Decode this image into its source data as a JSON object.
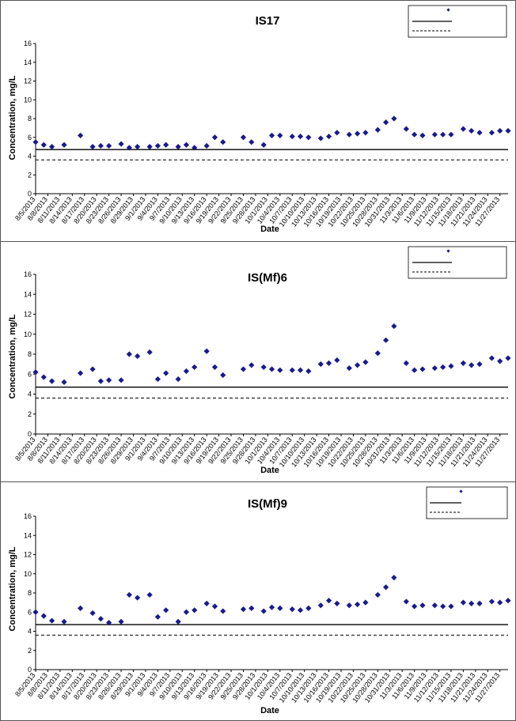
{
  "chart_data": [
    {
      "type": "scatter",
      "title": "IS17",
      "xlabel": "Date",
      "ylabel": "Concentration, mg/L",
      "ylim": [
        0,
        16
      ],
      "yticks": [
        "0",
        "2",
        "4",
        "6",
        "8",
        "10",
        "12",
        "14",
        "16"
      ],
      "xlim": [
        "8/5/2013",
        "11/29/2013"
      ],
      "xtick_labels": [
        "8/5/2013",
        "8/8/2013",
        "8/11/2013",
        "8/14/2013",
        "8/17/2013",
        "8/20/2013",
        "8/23/2013",
        "8/26/2013",
        "8/29/2013",
        "9/1/2013",
        "9/4/2013",
        "9/7/2013",
        "9/10/2013",
        "9/13/2013",
        "9/16/2013",
        "9/19/2013",
        "9/22/2013",
        "9/25/2013",
        "9/28/2013",
        "10/1/2013",
        "10/4/2013",
        "10/7/2013",
        "10/10/2013",
        "10/13/2013",
        "10/16/2013",
        "10/19/2013",
        "10/22/2013",
        "10/25/2013",
        "10/28/2013",
        "10/31/2013",
        "11/3/2013",
        "11/6/2013",
        "11/9/2013",
        "11/12/2013",
        "11/15/2013",
        "11/18/2013",
        "11/21/2013",
        "11/24/2013",
        "11/27/2013"
      ],
      "grid": false,
      "legend_placement": "top-right",
      "marker_color": "#1a1a8c",
      "line_solid": 4.7,
      "line_dashed": 3.6,
      "points": [
        [
          "8/5/2013",
          5.5
        ],
        [
          "8/7/2013",
          5.2
        ],
        [
          "8/9/2013",
          5.0
        ],
        [
          "8/12/2013",
          5.2
        ],
        [
          "8/16/2013",
          6.2
        ],
        [
          "8/19/2013",
          5.0
        ],
        [
          "8/21/2013",
          5.1
        ],
        [
          "8/23/2013",
          5.1
        ],
        [
          "8/26/2013",
          5.3
        ],
        [
          "8/28/2013",
          4.9
        ],
        [
          "8/30/2013",
          5.0
        ],
        [
          "9/2/2013",
          5.0
        ],
        [
          "9/4/2013",
          5.1
        ],
        [
          "9/6/2013",
          5.2
        ],
        [
          "9/9/2013",
          5.0
        ],
        [
          "9/11/2013",
          5.2
        ],
        [
          "9/13/2013",
          4.9
        ],
        [
          "9/16/2013",
          5.1
        ],
        [
          "9/18/2013",
          6.0
        ],
        [
          "9/20/2013",
          5.5
        ],
        [
          "9/25/2013",
          6.0
        ],
        [
          "9/27/2013",
          5.5
        ],
        [
          "9/30/2013",
          5.2
        ],
        [
          "10/2/2013",
          6.2
        ],
        [
          "10/4/2013",
          6.2
        ],
        [
          "10/7/2013",
          6.1
        ],
        [
          "10/9/2013",
          6.1
        ],
        [
          "10/11/2013",
          6.0
        ],
        [
          "10/14/2013",
          5.9
        ],
        [
          "10/16/2013",
          6.1
        ],
        [
          "10/18/2013",
          6.5
        ],
        [
          "10/21/2013",
          6.3
        ],
        [
          "10/23/2013",
          6.4
        ],
        [
          "10/25/2013",
          6.5
        ],
        [
          "10/28/2013",
          6.8
        ],
        [
          "10/30/2013",
          7.6
        ],
        [
          "11/1/2013",
          8.0
        ],
        [
          "11/4/2013",
          6.9
        ],
        [
          "11/6/2013",
          6.3
        ],
        [
          "11/8/2013",
          6.2
        ],
        [
          "11/11/2013",
          6.3
        ],
        [
          "11/13/2013",
          6.3
        ],
        [
          "11/15/2013",
          6.3
        ],
        [
          "11/18/2013",
          6.9
        ],
        [
          "11/20/2013",
          6.7
        ],
        [
          "11/22/2013",
          6.5
        ],
        [
          "11/25/2013",
          6.5
        ],
        [
          "11/27/2013",
          6.7
        ],
        [
          "11/29/2013",
          6.7
        ]
      ]
    },
    {
      "type": "scatter",
      "title": "IS(Mf)6",
      "xlabel": "Date",
      "ylabel": "Concentration, mg/L",
      "ylim": [
        0,
        16
      ],
      "yticks": [
        "0",
        "2",
        "4",
        "6",
        "8",
        "10",
        "12",
        "14",
        "16"
      ],
      "xlim": [
        "8/5/2013",
        "11/29/2013"
      ],
      "xtick_labels": [
        "8/5/2013",
        "8/8/2013",
        "8/11/2013",
        "8/14/2013",
        "8/17/2013",
        "8/20/2013",
        "8/23/2013",
        "8/26/2013",
        "8/29/2013",
        "9/1/2013",
        "9/4/2013",
        "9/7/2013",
        "9/10/2013",
        "9/13/2013",
        "9/16/2013",
        "9/19/2013",
        "9/22/2013",
        "9/25/2013",
        "9/28/2013",
        "10/1/2013",
        "10/4/2013",
        "10/7/2013",
        "10/10/2013",
        "10/13/2013",
        "10/16/2013",
        "10/19/2013",
        "10/22/2013",
        "10/25/2013",
        "10/28/2013",
        "10/31/2013",
        "11/3/2013",
        "11/6/2013",
        "11/9/2013",
        "11/12/2013",
        "11/15/2013",
        "11/18/2013",
        "11/21/2013",
        "11/24/2013",
        "11/27/2013"
      ],
      "grid": false,
      "legend_placement": "top-right",
      "marker_color": "#1a1a8c",
      "line_solid": 4.7,
      "line_dashed": 3.6,
      "points": [
        [
          "8/5/2013",
          6.2
        ],
        [
          "8/7/2013",
          5.7
        ],
        [
          "8/9/2013",
          5.3
        ],
        [
          "8/12/2013",
          5.2
        ],
        [
          "8/16/2013",
          6.1
        ],
        [
          "8/19/2013",
          6.5
        ],
        [
          "8/21/2013",
          5.3
        ],
        [
          "8/23/2013",
          5.4
        ],
        [
          "8/26/2013",
          5.4
        ],
        [
          "8/28/2013",
          8.0
        ],
        [
          "8/30/2013",
          7.8
        ],
        [
          "9/2/2013",
          8.2
        ],
        [
          "9/4/2013",
          5.5
        ],
        [
          "9/6/2013",
          6.1
        ],
        [
          "9/9/2013",
          5.5
        ],
        [
          "9/11/2013",
          6.3
        ],
        [
          "9/13/2013",
          6.7
        ],
        [
          "9/16/2013",
          8.3
        ],
        [
          "9/18/2013",
          6.7
        ],
        [
          "9/20/2013",
          5.9
        ],
        [
          "9/25/2013",
          6.5
        ],
        [
          "9/27/2013",
          6.9
        ],
        [
          "9/30/2013",
          6.7
        ],
        [
          "10/2/2013",
          6.5
        ],
        [
          "10/4/2013",
          6.4
        ],
        [
          "10/7/2013",
          6.4
        ],
        [
          "10/9/2013",
          6.4
        ],
        [
          "10/11/2013",
          6.3
        ],
        [
          "10/14/2013",
          7.0
        ],
        [
          "10/16/2013",
          7.1
        ],
        [
          "10/18/2013",
          7.4
        ],
        [
          "10/21/2013",
          6.6
        ],
        [
          "10/23/2013",
          6.9
        ],
        [
          "10/25/2013",
          7.2
        ],
        [
          "10/28/2013",
          8.1
        ],
        [
          "10/30/2013",
          9.4
        ],
        [
          "11/1/2013",
          10.8
        ],
        [
          "11/4/2013",
          7.1
        ],
        [
          "11/6/2013",
          6.4
        ],
        [
          "11/8/2013",
          6.5
        ],
        [
          "11/11/2013",
          6.6
        ],
        [
          "11/13/2013",
          6.7
        ],
        [
          "11/15/2013",
          6.8
        ],
        [
          "11/18/2013",
          7.1
        ],
        [
          "11/20/2013",
          6.9
        ],
        [
          "11/22/2013",
          7.0
        ],
        [
          "11/25/2013",
          7.6
        ],
        [
          "11/27/2013",
          7.3
        ],
        [
          "11/29/2013",
          7.6
        ]
      ]
    },
    {
      "type": "scatter",
      "title": "IS(Mf)9",
      "xlabel": "Date",
      "ylabel": "Concentration, mg/L",
      "ylim": [
        0,
        16
      ],
      "yticks": [
        "0",
        "2",
        "4",
        "6",
        "8",
        "10",
        "12",
        "14",
        "16"
      ],
      "xlim": [
        "8/5/2013",
        "11/29/2013"
      ],
      "xtick_labels": [
        "8/5/2013",
        "8/8/2013",
        "8/11/2013",
        "8/14/2013",
        "8/17/2013",
        "8/20/2013",
        "8/23/2013",
        "8/26/2013",
        "8/29/2013",
        "9/1/2013",
        "9/4/2013",
        "9/7/2013",
        "9/10/2013",
        "9/13/2013",
        "9/16/2013",
        "9/19/2013",
        "9/22/2013",
        "9/25/2013",
        "9/28/2013",
        "10/1/2013",
        "10/4/2013",
        "10/7/2013",
        "10/10/2013",
        "10/13/2013",
        "10/16/2013",
        "10/19/2013",
        "10/22/2013",
        "10/25/2013",
        "10/28/2013",
        "10/31/2013",
        "11/3/2013",
        "11/6/2013",
        "11/9/2013",
        "11/12/2013",
        "11/15/2013",
        "11/18/2013",
        "11/21/2013",
        "11/24/2013",
        "11/27/2013"
      ],
      "grid": false,
      "legend_placement": "top-right",
      "marker_color": "#1a1a8c",
      "line_solid": 4.7,
      "line_dashed": 3.6,
      "points": [
        [
          "8/5/2013",
          6.0
        ],
        [
          "8/7/2013",
          5.6
        ],
        [
          "8/9/2013",
          5.1
        ],
        [
          "8/12/2013",
          5.0
        ],
        [
          "8/16/2013",
          6.4
        ],
        [
          "8/19/2013",
          5.9
        ],
        [
          "8/21/2013",
          5.3
        ],
        [
          "8/23/2013",
          4.9
        ],
        [
          "8/26/2013",
          5.0
        ],
        [
          "8/28/2013",
          7.8
        ],
        [
          "8/30/2013",
          7.5
        ],
        [
          "9/2/2013",
          7.8
        ],
        [
          "9/4/2013",
          5.5
        ],
        [
          "9/6/2013",
          6.2
        ],
        [
          "9/9/2013",
          5.0
        ],
        [
          "9/11/2013",
          6.0
        ],
        [
          "9/13/2013",
          6.2
        ],
        [
          "9/16/2013",
          6.9
        ],
        [
          "9/18/2013",
          6.6
        ],
        [
          "9/20/2013",
          6.1
        ],
        [
          "9/25/2013",
          6.3
        ],
        [
          "9/27/2013",
          6.4
        ],
        [
          "9/30/2013",
          6.1
        ],
        [
          "10/2/2013",
          6.5
        ],
        [
          "10/4/2013",
          6.4
        ],
        [
          "10/7/2013",
          6.3
        ],
        [
          "10/9/2013",
          6.2
        ],
        [
          "10/11/2013",
          6.4
        ],
        [
          "10/14/2013",
          6.7
        ],
        [
          "10/16/2013",
          7.2
        ],
        [
          "10/18/2013",
          6.9
        ],
        [
          "10/21/2013",
          6.7
        ],
        [
          "10/23/2013",
          6.8
        ],
        [
          "10/25/2013",
          7.0
        ],
        [
          "10/28/2013",
          7.8
        ],
        [
          "10/30/2013",
          8.6
        ],
        [
          "11/1/2013",
          9.6
        ],
        [
          "11/4/2013",
          7.1
        ],
        [
          "11/6/2013",
          6.6
        ],
        [
          "11/8/2013",
          6.7
        ],
        [
          "11/11/2013",
          6.7
        ],
        [
          "11/13/2013",
          6.6
        ],
        [
          "11/15/2013",
          6.6
        ],
        [
          "11/18/2013",
          7.0
        ],
        [
          "11/20/2013",
          6.9
        ],
        [
          "11/22/2013",
          6.9
        ],
        [
          "11/25/2013",
          7.1
        ],
        [
          "11/27/2013",
          7.0
        ],
        [
          "11/29/2013",
          7.2
        ]
      ]
    }
  ]
}
